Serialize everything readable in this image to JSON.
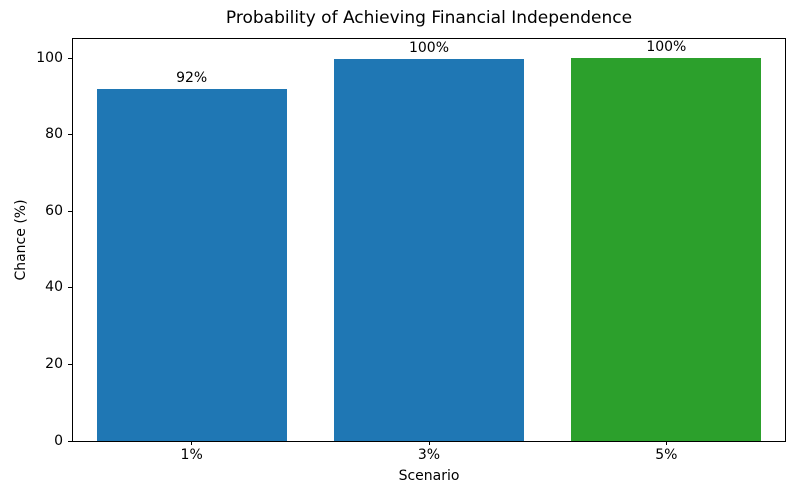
{
  "chart_data": {
    "type": "bar",
    "title": "Probability of Achieving Financial Independence",
    "xlabel": "Scenario",
    "ylabel": "Chance (%)",
    "categories": [
      "1%",
      "3%",
      "5%"
    ],
    "values": [
      92,
      99.7,
      100
    ],
    "bar_labels": [
      "92%",
      "100%",
      "100%"
    ],
    "bar_colors": [
      "#1f77b4",
      "#1f77b4",
      "#2ca02c"
    ],
    "y_ticks": [
      0,
      20,
      40,
      60,
      80,
      100
    ],
    "ylim": [
      0,
      105
    ],
    "bar_width_fraction": 0.8,
    "grid": false,
    "legend": "none",
    "spine_color": "#000000",
    "background_color": "#ffffff",
    "text_color": "#000000"
  }
}
